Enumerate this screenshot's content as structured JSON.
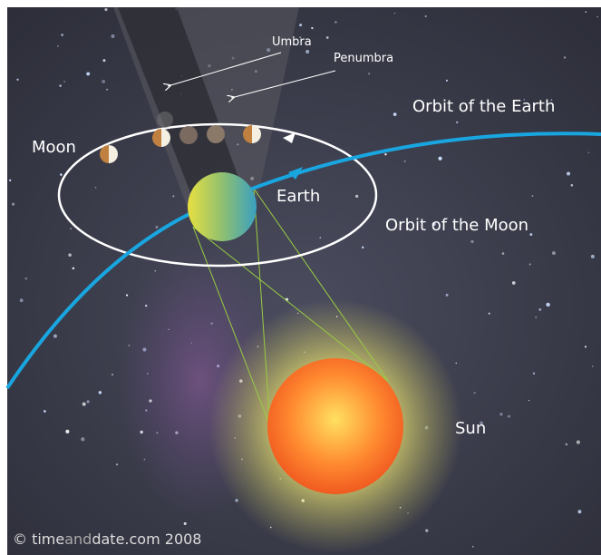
{
  "labels": {
    "umbra": "Umbra",
    "penumbra": "Penumbra",
    "earth_orbit": "Orbit of the Earth",
    "moon": "Moon",
    "earth": "Earth",
    "moon_orbit": "Orbit of the Moon",
    "sun": "Sun"
  },
  "credit": {
    "prefix": "© time",
    "middle": "and",
    "suffix": "date.com 2008"
  }
}
